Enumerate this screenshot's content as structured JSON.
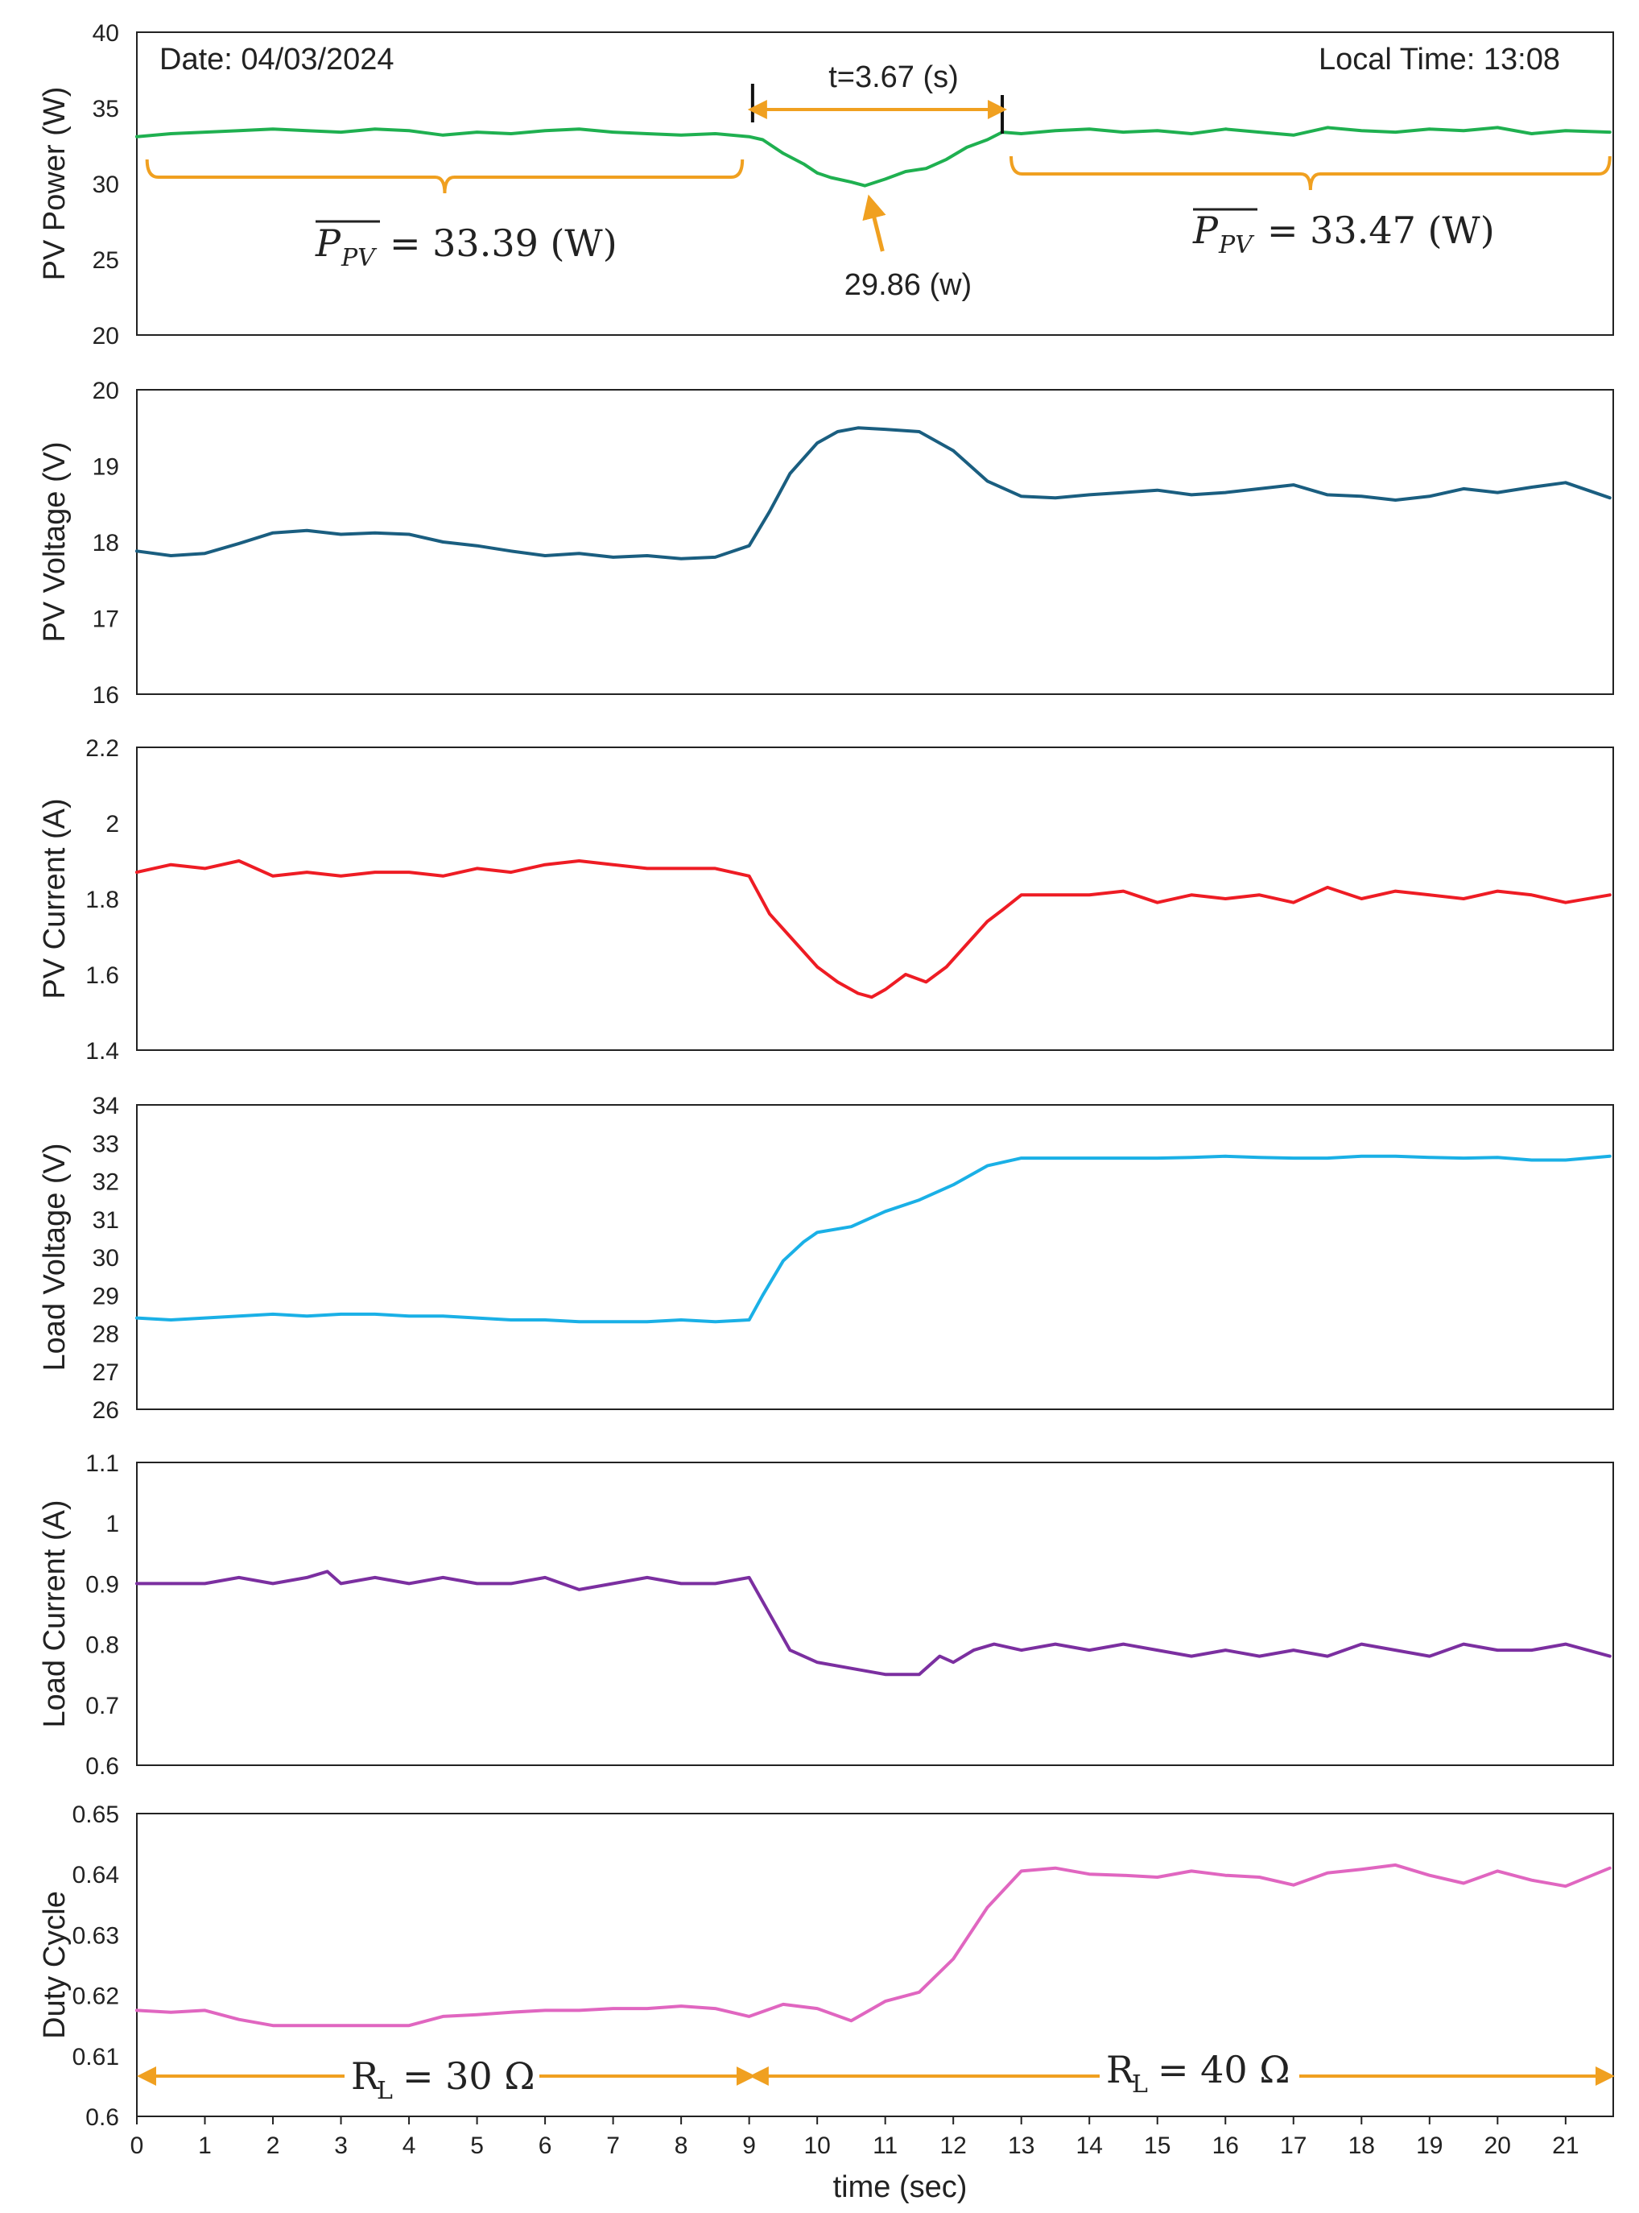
{
  "figure": {
    "xlabel": "time (sec)",
    "xticks": [
      "0",
      "1",
      "2",
      "3",
      "4",
      "5",
      "6",
      "7",
      "8",
      "9",
      "10",
      "11",
      "12",
      "13",
      "14",
      "15",
      "16",
      "17",
      "18",
      "19",
      "20",
      "21"
    ],
    "xlim": [
      0,
      21.7
    ]
  },
  "annotations": {
    "date": "Date: 04/03/2024",
    "local_time": "Local Time: 13:08",
    "duration": "t=3.67 (s)",
    "dip_value": "29.86 (w)",
    "mean_left_symbol": "P",
    "mean_left_subscript": "PV",
    "mean_left_value": "= 33.39 (W)",
    "mean_right_symbol": "P",
    "mean_right_subscript": "PV",
    "mean_right_value": "= 33.47 (W)",
    "rl_left_symbol": "R",
    "rl_left_subscript": "L",
    "rl_left_value": "= 30 Ω",
    "rl_right_symbol": "R",
    "rl_right_subscript": "L",
    "rl_right_value": "= 40 Ω",
    "duration_start_s": 9.05,
    "duration_end_s": 12.72,
    "mean_left_range_s": [
      0.15,
      8.9
    ],
    "mean_right_range_s": [
      12.85,
      21.65
    ],
    "dip_time_s": 10.7,
    "rl_change_time_s": 9.05,
    "accent_color": "#f0a020"
  },
  "chart_data": [
    {
      "type": "line",
      "ylabel": "PV Power (W)",
      "ylim": [
        20,
        40
      ],
      "yticks": [
        "20",
        "25",
        "30",
        "35",
        "40"
      ],
      "color": "#1fb050",
      "x": [
        0,
        0.5,
        1,
        1.5,
        2,
        2.5,
        3,
        3.5,
        4,
        4.5,
        5,
        5.5,
        6,
        6.5,
        7,
        7.5,
        8,
        8.5,
        9,
        9.2,
        9.5,
        9.8,
        10,
        10.2,
        10.5,
        10.7,
        11,
        11.3,
        11.6,
        11.9,
        12.2,
        12.5,
        12.72,
        13,
        13.5,
        14,
        14.5,
        15,
        15.5,
        16,
        16.5,
        17,
        17.5,
        18,
        18.5,
        19,
        19.5,
        20,
        20.5,
        21,
        21.65
      ],
      "values": [
        33.1,
        33.3,
        33.4,
        33.5,
        33.6,
        33.5,
        33.4,
        33.6,
        33.5,
        33.2,
        33.4,
        33.3,
        33.5,
        33.6,
        33.4,
        33.3,
        33.2,
        33.3,
        33.1,
        32.9,
        32.0,
        31.3,
        30.7,
        30.4,
        30.1,
        29.86,
        30.3,
        30.8,
        31.0,
        31.6,
        32.4,
        32.9,
        33.4,
        33.3,
        33.5,
        33.6,
        33.4,
        33.5,
        33.3,
        33.6,
        33.4,
        33.2,
        33.7,
        33.5,
        33.4,
        33.6,
        33.5,
        33.7,
        33.3,
        33.5,
        33.4
      ],
      "series_name": "PV Power"
    },
    {
      "type": "line",
      "ylabel": "PV Voltage (V)",
      "ylim": [
        16,
        20
      ],
      "yticks": [
        "16",
        "17",
        "18",
        "19",
        "20"
      ],
      "color": "#1a5e80",
      "x": [
        0,
        0.5,
        1,
        1.5,
        2,
        2.5,
        3,
        3.5,
        4,
        4.5,
        5,
        5.5,
        6,
        6.5,
        7,
        7.5,
        8,
        8.5,
        9,
        9.3,
        9.6,
        10,
        10.3,
        10.6,
        11,
        11.5,
        12,
        12.5,
        13,
        13.5,
        14,
        14.5,
        15,
        15.5,
        16,
        16.5,
        17,
        17.5,
        18,
        18.5,
        19,
        19.5,
        20,
        20.5,
        21,
        21.65
      ],
      "values": [
        17.88,
        17.82,
        17.85,
        17.98,
        18.12,
        18.15,
        18.1,
        18.12,
        18.1,
        18.0,
        17.95,
        17.88,
        17.82,
        17.85,
        17.8,
        17.82,
        17.78,
        17.8,
        17.95,
        18.4,
        18.9,
        19.3,
        19.45,
        19.5,
        19.48,
        19.45,
        19.2,
        18.8,
        18.6,
        18.58,
        18.62,
        18.65,
        18.68,
        18.62,
        18.65,
        18.7,
        18.75,
        18.62,
        18.6,
        18.55,
        18.6,
        18.7,
        18.65,
        18.72,
        18.78,
        18.58
      ],
      "series_name": "PV Voltage"
    },
    {
      "type": "line",
      "ylabel": "PV Current (A)",
      "ylim": [
        1.4,
        2.2
      ],
      "yticks": [
        "1.4",
        "1.6",
        "1.8",
        "2",
        "2.2"
      ],
      "color": "#ee1c24",
      "x": [
        0,
        0.5,
        1,
        1.5,
        2,
        2.5,
        3,
        3.5,
        4,
        4.5,
        5,
        5.5,
        6,
        6.5,
        7,
        7.5,
        8,
        8.5,
        9,
        9.3,
        9.6,
        10,
        10.3,
        10.6,
        10.8,
        11,
        11.3,
        11.6,
        11.9,
        12.2,
        12.5,
        12.72,
        13,
        13.5,
        14,
        14.5,
        15,
        15.5,
        16,
        16.5,
        17,
        17.5,
        18,
        18.5,
        19,
        19.5,
        20,
        20.5,
        21,
        21.65
      ],
      "values": [
        1.87,
        1.89,
        1.88,
        1.9,
        1.86,
        1.87,
        1.86,
        1.87,
        1.87,
        1.86,
        1.88,
        1.87,
        1.89,
        1.9,
        1.89,
        1.88,
        1.88,
        1.88,
        1.86,
        1.76,
        1.7,
        1.62,
        1.58,
        1.55,
        1.54,
        1.56,
        1.6,
        1.58,
        1.62,
        1.68,
        1.74,
        1.77,
        1.81,
        1.81,
        1.81,
        1.82,
        1.79,
        1.81,
        1.8,
        1.81,
        1.79,
        1.83,
        1.8,
        1.82,
        1.81,
        1.8,
        1.82,
        1.81,
        1.79,
        1.81
      ],
      "series_name": "PV Current"
    },
    {
      "type": "line",
      "ylabel": "Load Voltage (V)",
      "ylim": [
        26,
        34
      ],
      "yticks": [
        "26",
        "27",
        "28",
        "29",
        "30",
        "31",
        "32",
        "33",
        "34"
      ],
      "color": "#1ab0e6",
      "x": [
        0,
        0.5,
        1,
        1.5,
        2,
        2.5,
        3,
        3.5,
        4,
        4.5,
        5,
        5.5,
        6,
        6.5,
        7,
        7.5,
        8,
        8.5,
        9,
        9.2,
        9.5,
        9.8,
        10,
        10.5,
        11,
        11.5,
        12,
        12.5,
        13,
        13.5,
        14,
        14.5,
        15,
        15.5,
        16,
        16.5,
        17,
        17.5,
        18,
        18.5,
        19,
        19.5,
        20,
        20.5,
        21,
        21.65
      ],
      "values": [
        28.4,
        28.35,
        28.4,
        28.45,
        28.5,
        28.45,
        28.5,
        28.5,
        28.45,
        28.45,
        28.4,
        28.35,
        28.35,
        28.3,
        28.3,
        28.3,
        28.35,
        28.3,
        28.35,
        29.0,
        29.9,
        30.4,
        30.65,
        30.8,
        31.2,
        31.5,
        31.9,
        32.4,
        32.6,
        32.6,
        32.6,
        32.6,
        32.6,
        32.62,
        32.65,
        32.62,
        32.6,
        32.6,
        32.65,
        32.65,
        32.62,
        32.6,
        32.62,
        32.55,
        32.55,
        32.65
      ],
      "series_name": "Load Voltage"
    },
    {
      "type": "line",
      "ylabel": "Load Current (A)",
      "ylim": [
        0.6,
        1.1
      ],
      "yticks": [
        "0.6",
        "0.7",
        "0.8",
        "0.9",
        "1",
        "1.1"
      ],
      "color": "#7b2fa0",
      "x": [
        0,
        0.5,
        1,
        1.5,
        2,
        2.5,
        2.8,
        3,
        3.5,
        4,
        4.5,
        5,
        5.5,
        6,
        6.5,
        7,
        7.5,
        8,
        8.5,
        9,
        9.3,
        9.6,
        10,
        10.5,
        11,
        11.5,
        11.8,
        12,
        12.3,
        12.6,
        13,
        13.5,
        14,
        14.5,
        15,
        15.5,
        16,
        16.5,
        17,
        17.5,
        18,
        18.5,
        19,
        19.5,
        20,
        20.5,
        21,
        21.65
      ],
      "values": [
        0.9,
        0.9,
        0.9,
        0.91,
        0.9,
        0.91,
        0.92,
        0.9,
        0.91,
        0.9,
        0.91,
        0.9,
        0.9,
        0.91,
        0.89,
        0.9,
        0.91,
        0.9,
        0.9,
        0.91,
        0.85,
        0.79,
        0.77,
        0.76,
        0.75,
        0.75,
        0.78,
        0.77,
        0.79,
        0.8,
        0.79,
        0.8,
        0.79,
        0.8,
        0.79,
        0.78,
        0.79,
        0.78,
        0.79,
        0.78,
        0.8,
        0.79,
        0.78,
        0.8,
        0.79,
        0.79,
        0.8,
        0.78
      ],
      "series_name": "Load Current"
    },
    {
      "type": "line",
      "ylabel": "Duty Cycle",
      "ylim": [
        0.6,
        0.65
      ],
      "yticks": [
        "0.6",
        "0.61",
        "0.62",
        "0.63",
        "0.64",
        "0.65"
      ],
      "color": "#e066c0",
      "x": [
        0,
        0.5,
        1,
        1.5,
        2,
        2.5,
        3,
        3.5,
        4,
        4.5,
        5,
        5.5,
        6,
        6.5,
        7,
        7.5,
        8,
        8.5,
        9,
        9.5,
        10,
        10.5,
        11,
        11.5,
        12,
        12.5,
        13,
        13.5,
        14,
        14.5,
        15,
        15.5,
        16,
        16.5,
        17,
        17.5,
        18,
        18.5,
        19,
        19.5,
        20,
        20.5,
        21,
        21.65
      ],
      "values": [
        0.6175,
        0.6172,
        0.6175,
        0.616,
        0.615,
        0.615,
        0.615,
        0.615,
        0.615,
        0.6165,
        0.6168,
        0.6172,
        0.6175,
        0.6175,
        0.6178,
        0.6178,
        0.6182,
        0.6178,
        0.6165,
        0.6185,
        0.6178,
        0.6158,
        0.619,
        0.6205,
        0.626,
        0.6345,
        0.6405,
        0.641,
        0.64,
        0.6398,
        0.6395,
        0.6405,
        0.6398,
        0.6395,
        0.6382,
        0.6402,
        0.6408,
        0.6415,
        0.6398,
        0.6385,
        0.6405,
        0.639,
        0.638,
        0.641
      ],
      "series_name": "Duty Cycle"
    }
  ]
}
